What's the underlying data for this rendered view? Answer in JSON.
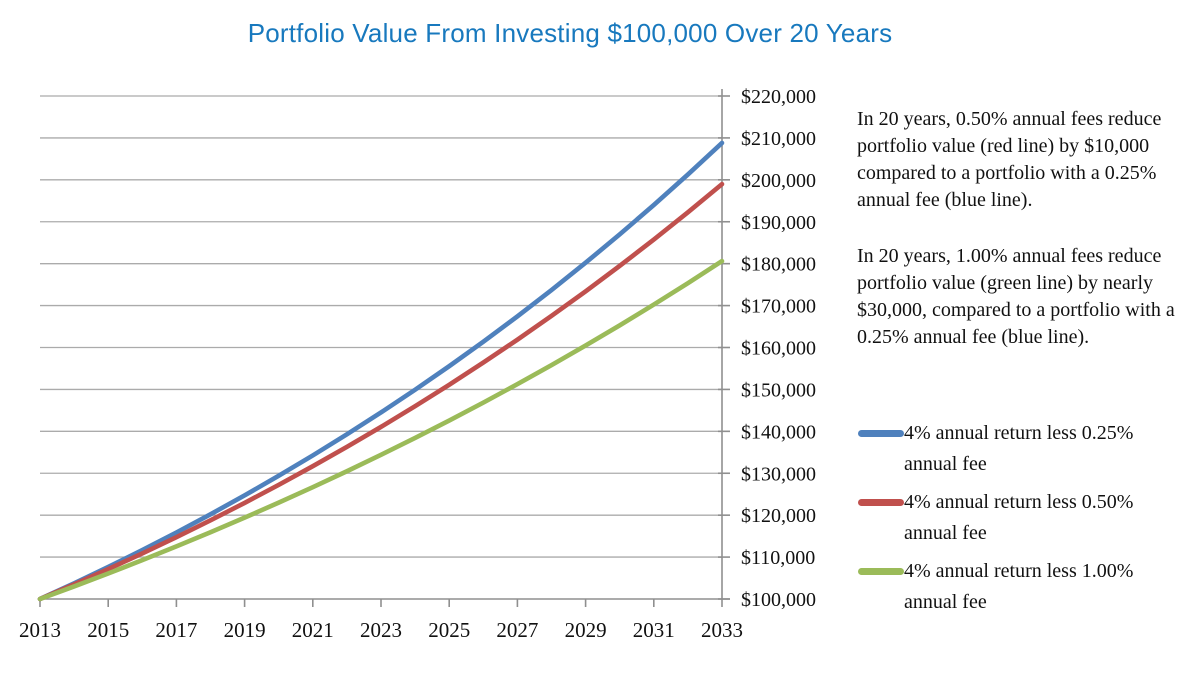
{
  "title": "Portfolio Value From Investing $100,000 Over 20 Years",
  "title_color": "#1879BE",
  "annotations": [
    "In 20 years, 0.50% annual fees reduce portfolio value (red line) by $10,000 compared to a portfolio with a 0.25% annual fee (blue line).",
    "In 20 years, 1.00% annual fees reduce portfolio value (green line) by nearly $30,000, compared to a portfolio with a 0.25% annual fee (blue line)."
  ],
  "chart_data": {
    "type": "line",
    "title": "Portfolio Value From Investing $100,000 Over 20 Years",
    "xlabel": "",
    "ylabel": "",
    "x": [
      2013,
      2014,
      2015,
      2016,
      2017,
      2018,
      2019,
      2020,
      2021,
      2022,
      2023,
      2024,
      2025,
      2026,
      2027,
      2028,
      2029,
      2030,
      2031,
      2032,
      2033
    ],
    "x_tick_labels": [
      "2013",
      "2015",
      "2017",
      "2019",
      "2021",
      "2023",
      "2025",
      "2027",
      "2029",
      "2031",
      "2033"
    ],
    "y_tick_labels": [
      "$100,000",
      "$110,000",
      "$120,000",
      "$130,000",
      "$140,000",
      "$150,000",
      "$160,000",
      "$170,000",
      "$180,000",
      "$190,000",
      "$200,000",
      "$210,000",
      "$220,000"
    ],
    "ylim": [
      100000,
      220000
    ],
    "ytick_step": 10000,
    "grid": true,
    "grid_color": "#ABABAB",
    "axis_color": "#8F8F8F",
    "legend_position": "right",
    "series": [
      {
        "name": "4% annual return less 0.25% annual fee",
        "color": "#4F81BD",
        "values": [
          100000,
          103750,
          107641,
          111677,
          115865,
          120210,
          124718,
          129395,
          134247,
          139281,
          144504,
          149923,
          155545,
          161378,
          167430,
          173709,
          180223,
          186981,
          193993,
          201268,
          208815
        ]
      },
      {
        "name": "4% annual return less 0.50% annual fee",
        "color": "#C0504D",
        "values": [
          100000,
          103500,
          107122,
          110872,
          114752,
          118769,
          122926,
          127228,
          131681,
          136290,
          141060,
          145997,
          151107,
          156396,
          161869,
          167535,
          173399,
          179468,
          185749,
          192250,
          198979
        ]
      },
      {
        "name": "4% annual return less 1.00% annual fee",
        "color": "#9BBB59",
        "values": [
          100000,
          103000,
          106090,
          109273,
          112551,
          115927,
          119405,
          122987,
          126677,
          130477,
          134392,
          138423,
          142576,
          146853,
          151259,
          155797,
          160471,
          165285,
          170243,
          175351,
          180611
        ]
      }
    ]
  }
}
